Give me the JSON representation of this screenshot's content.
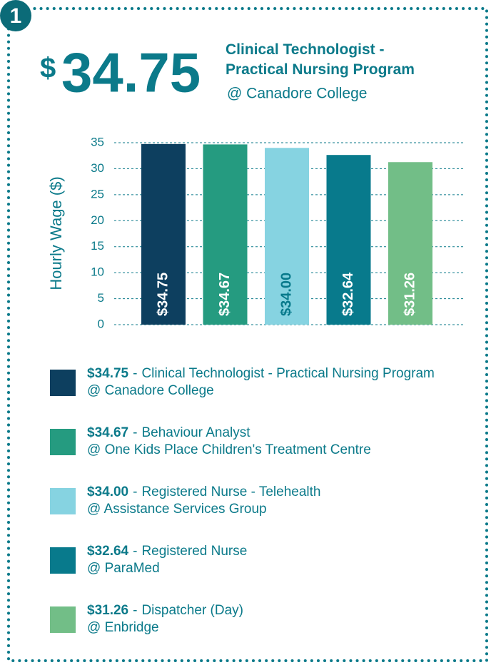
{
  "badge": "1",
  "headline_currency": "$",
  "headline_value": "34.75",
  "chart_data": {
    "type": "bar",
    "title": "Clinical Technologist - Practical Nursing Program",
    "subtitle": "@ Canadore College",
    "ylabel": "Hourly Wage ($)",
    "categories": [
      "Clinical Technologist - Practical Nursing Program",
      "Behaviour Analyst",
      "Registered Nurse - Telehealth",
      "Registered Nurse",
      "Dispatcher (Day)"
    ],
    "employers": [
      "@ Canadore College",
      "@ One Kids Place Children's Treatment Centre",
      "@ Assistance Services Group",
      "@ ParaMed",
      "@ Enbridge"
    ],
    "values": [
      34.75,
      34.67,
      34.0,
      32.64,
      31.26
    ],
    "value_labels": [
      "$34.75",
      "$34.67",
      "$34.00",
      "$32.64",
      "$31.26"
    ],
    "colors": [
      "#0d3f5f",
      "#259b80",
      "#86d3e1",
      "#087a8c",
      "#72be87"
    ],
    "legend_separator": "-",
    "ylim": [
      0,
      35
    ],
    "yticks": [
      0,
      5,
      10,
      15,
      20,
      25,
      30,
      35
    ],
    "grid": true
  }
}
